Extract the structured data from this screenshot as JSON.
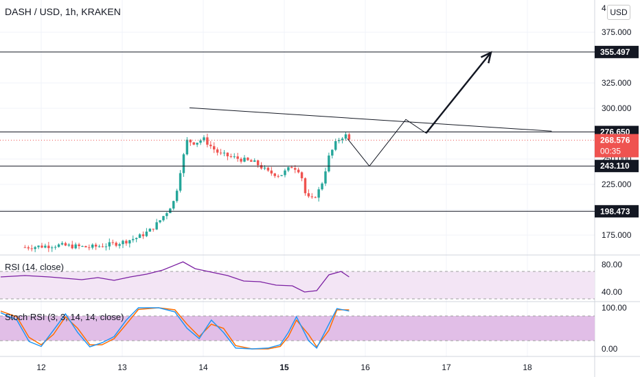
{
  "symbol": "DASH / USD, 1h, KRAKEN",
  "currency_button": "USD",
  "colors": {
    "up": "#26a69a",
    "down": "#ef5350",
    "rsi_line": "#7b1fa2",
    "rsi_band": "#f3e5f5",
    "stoch_band": "#e1bee7",
    "stoch_k": "#2196f3",
    "stoch_d": "#ff6d00",
    "current_price": "#ef5350",
    "level_box": "#131722"
  },
  "chart_data": [
    {
      "type": "candlestick",
      "title": "DASH / USD, 1h, KRAKEN",
      "x_ticks": [
        "12",
        "13",
        "14",
        "15",
        "16",
        "17",
        "18"
      ],
      "y_ticks": [
        175,
        200,
        225,
        250,
        275,
        300,
        325,
        375
      ],
      "y_tick_labels": [
        "175.000",
        "200.000",
        "225.000",
        "250.000",
        "275.000",
        "300.000",
        "325.000",
        "375.000"
      ],
      "ylim": [
        150,
        400
      ],
      "xlim": [
        11.5,
        18.8
      ],
      "y_axis_top_label": "4",
      "horizontal_levels": [
        {
          "label": "355.497",
          "value": 355.497
        },
        {
          "label": "276.650",
          "value": 276.65
        },
        {
          "label": "243.110",
          "value": 243.11
        },
        {
          "label": "198.473",
          "value": 198.473
        }
      ],
      "current_price": {
        "label": "268.576",
        "value": 268.576,
        "countdown": "00:35"
      },
      "trendline": [
        [
          13.83,
          300.5
        ],
        [
          18.3,
          277.5
        ]
      ],
      "projection_path": [
        [
          15.78,
          270
        ],
        [
          16.05,
          243
        ],
        [
          16.5,
          289
        ],
        [
          16.75,
          275.5
        ]
      ],
      "projection_arrow": [
        [
          16.75,
          275.5
        ],
        [
          17.55,
          355
        ]
      ],
      "price_path": [
        [
          11.8,
          163
        ],
        [
          12.0,
          164
        ],
        [
          12.2,
          165
        ],
        [
          12.4,
          164
        ],
        [
          12.6,
          163
        ],
        [
          12.8,
          165
        ],
        [
          13.0,
          168
        ],
        [
          13.2,
          173
        ],
        [
          13.35,
          180
        ],
        [
          13.45,
          188
        ],
        [
          13.55,
          198
        ],
        [
          13.65,
          210
        ],
        [
          13.72,
          240
        ],
        [
          13.8,
          268
        ],
        [
          13.9,
          266
        ],
        [
          14.0,
          270
        ],
        [
          14.1,
          262
        ],
        [
          14.2,
          255
        ],
        [
          14.35,
          252
        ],
        [
          14.5,
          249
        ],
        [
          14.65,
          246
        ],
        [
          14.8,
          237
        ],
        [
          14.95,
          234
        ],
        [
          15.1,
          243
        ],
        [
          15.2,
          238
        ],
        [
          15.27,
          212
        ],
        [
          15.35,
          210
        ],
        [
          15.45,
          222
        ],
        [
          15.55,
          252
        ],
        [
          15.65,
          268
        ],
        [
          15.75,
          274
        ],
        [
          15.8,
          268.576
        ]
      ]
    },
    {
      "type": "line",
      "title": "RSI (14, close)",
      "y_tick_labels": [
        "80.00",
        "40.00"
      ],
      "ylim": [
        20,
        95
      ],
      "band": [
        30,
        70
      ],
      "series": [
        {
          "values": [
            [
              11.5,
              62
            ],
            [
              11.8,
              64
            ],
            [
              12.1,
              62
            ],
            [
              12.3,
              60
            ],
            [
              12.5,
              58
            ],
            [
              12.7,
              61
            ],
            [
              12.9,
              57
            ],
            [
              13.1,
              62
            ],
            [
              13.3,
              66
            ],
            [
              13.5,
              72
            ],
            [
              13.75,
              84
            ],
            [
              13.9,
              74
            ],
            [
              14.1,
              69
            ],
            [
              14.3,
              64
            ],
            [
              14.5,
              56
            ],
            [
              14.7,
              55
            ],
            [
              14.9,
              50
            ],
            [
              15.1,
              49
            ],
            [
              15.25,
              40
            ],
            [
              15.4,
              42
            ],
            [
              15.55,
              65
            ],
            [
              15.7,
              70
            ],
            [
              15.8,
              62
            ]
          ]
        }
      ]
    },
    {
      "type": "line",
      "title": "Stoch RSI (3, 3, 14, 14, close)",
      "y_tick_labels": [
        "100.00",
        "0.00"
      ],
      "ylim": [
        -10,
        110
      ],
      "band": [
        20,
        80
      ],
      "series": [
        {
          "values": [
            [
              11.5,
              88
            ],
            [
              11.7,
              70
            ],
            [
              11.85,
              18
            ],
            [
              12.0,
              6
            ],
            [
              12.15,
              45
            ],
            [
              12.3,
              85
            ],
            [
              12.45,
              40
            ],
            [
              12.6,
              5
            ],
            [
              12.75,
              15
            ],
            [
              12.9,
              30
            ],
            [
              13.05,
              70
            ],
            [
              13.2,
              100
            ],
            [
              13.45,
              100
            ],
            [
              13.65,
              90
            ],
            [
              13.8,
              50
            ],
            [
              13.95,
              25
            ],
            [
              14.1,
              70
            ],
            [
              14.25,
              40
            ],
            [
              14.4,
              2
            ],
            [
              14.6,
              0
            ],
            [
              14.8,
              2
            ],
            [
              14.95,
              10
            ],
            [
              15.05,
              40
            ],
            [
              15.15,
              78
            ],
            [
              15.3,
              20
            ],
            [
              15.4,
              2
            ],
            [
              15.55,
              60
            ],
            [
              15.65,
              98
            ],
            [
              15.8,
              92
            ]
          ]
        },
        {
          "values": [
            [
              11.5,
              92
            ],
            [
              11.7,
              78
            ],
            [
              11.85,
              28
            ],
            [
              12.0,
              10
            ],
            [
              12.15,
              35
            ],
            [
              12.3,
              78
            ],
            [
              12.45,
              50
            ],
            [
              12.6,
              10
            ],
            [
              12.75,
              10
            ],
            [
              12.9,
              25
            ],
            [
              13.05,
              60
            ],
            [
              13.2,
              96
            ],
            [
              13.45,
              100
            ],
            [
              13.65,
              95
            ],
            [
              13.8,
              60
            ],
            [
              13.95,
              30
            ],
            [
              14.1,
              60
            ],
            [
              14.25,
              50
            ],
            [
              14.4,
              8
            ],
            [
              14.6,
              0
            ],
            [
              14.8,
              0
            ],
            [
              14.95,
              6
            ],
            [
              15.05,
              30
            ],
            [
              15.15,
              70
            ],
            [
              15.3,
              35
            ],
            [
              15.4,
              5
            ],
            [
              15.55,
              45
            ],
            [
              15.65,
              95
            ],
            [
              15.8,
              95
            ]
          ]
        }
      ]
    }
  ]
}
